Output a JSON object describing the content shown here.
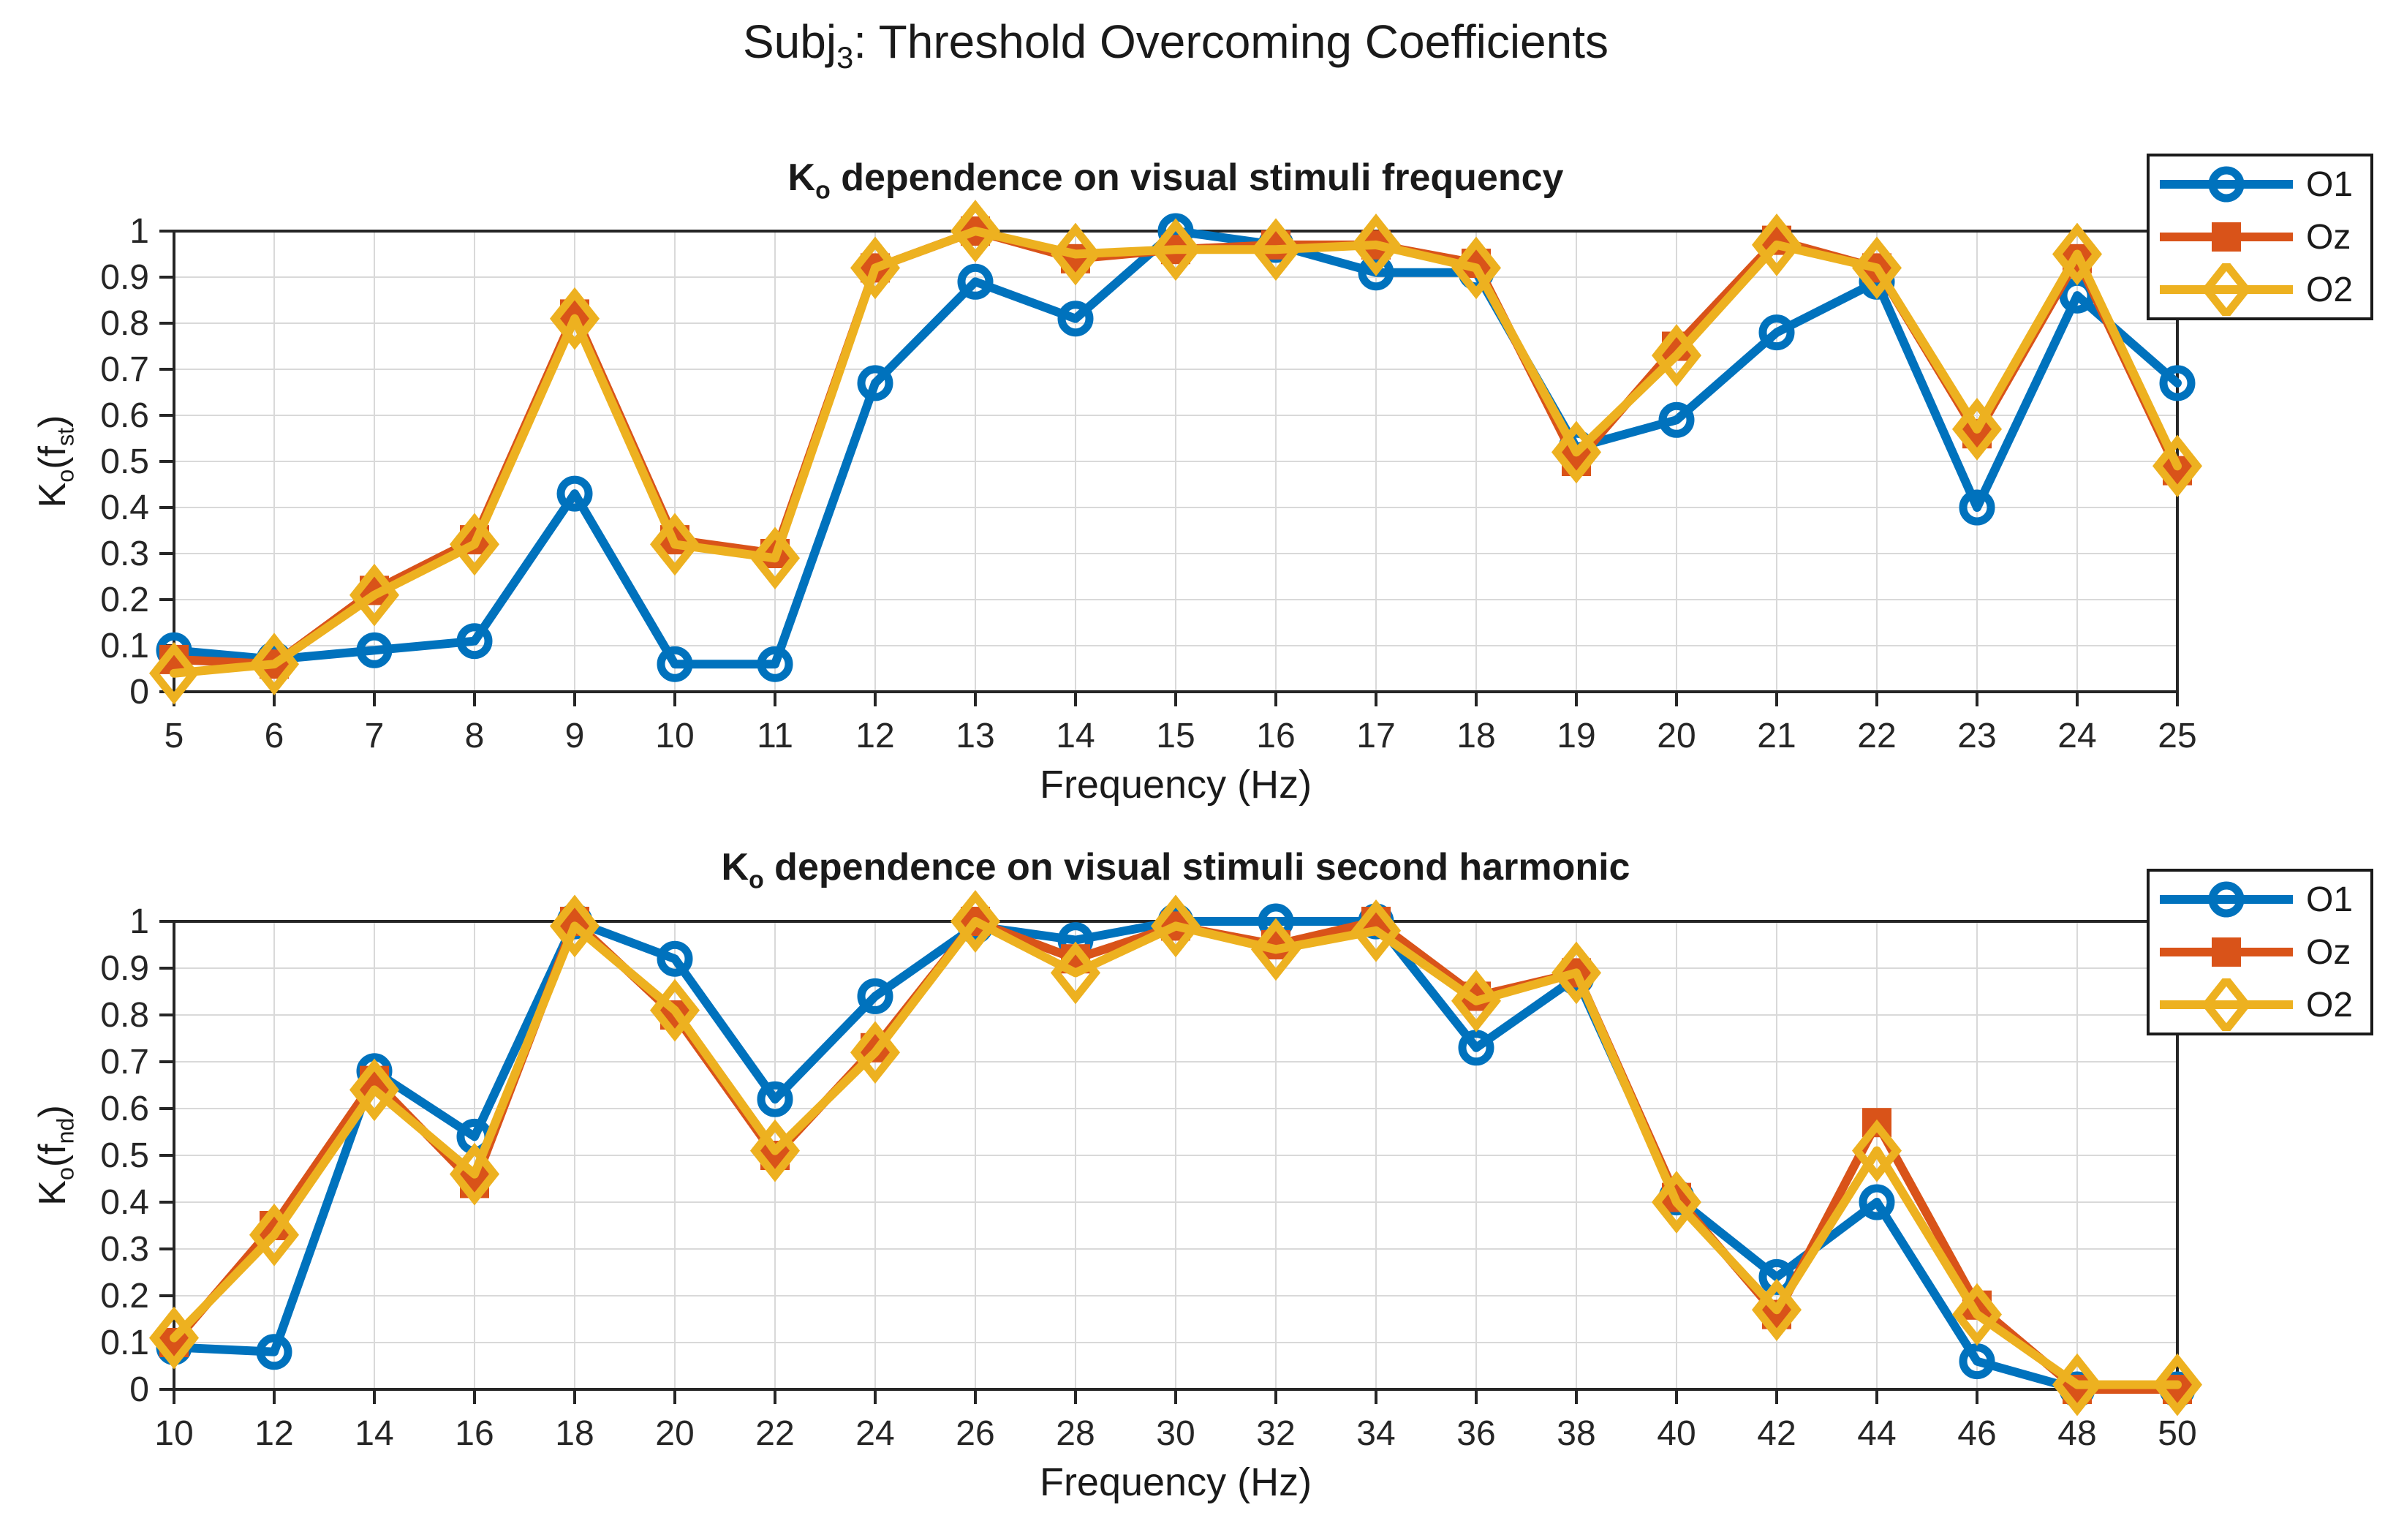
{
  "figure": {
    "title": {
      "prefix": "Subj",
      "sub": "3",
      "suffix": ": Threshold Overcoming Coefficients"
    }
  },
  "colors": {
    "o1": "#0072BD",
    "oz": "#D95319",
    "o2": "#EDB120",
    "axis": "#262626",
    "grid": "#D9D9D9",
    "background": "#FFFFFF"
  },
  "legend": {
    "entries": [
      {
        "label": "O1",
        "marker": "circle"
      },
      {
        "label": "Oz",
        "marker": "square"
      },
      {
        "label": "O2",
        "marker": "diamond"
      }
    ]
  },
  "chart_data": [
    {
      "type": "line",
      "title_k": "K",
      "title_sub": "o",
      "title_rest": " dependence on visual stimuli frequency",
      "ylabel_k": "K",
      "ylabel_sub": "o",
      "ylabel_open": "(f",
      "ylabel_fsub": "st",
      "ylabel_close": ")",
      "xlabel": "Frequency (Hz)",
      "xlim": [
        5,
        25
      ],
      "ylim": [
        0,
        1
      ],
      "grid": true,
      "legend_position": "top-right",
      "x": [
        5,
        6,
        7,
        8,
        9,
        10,
        11,
        12,
        13,
        14,
        15,
        16,
        17,
        18,
        19,
        20,
        21,
        22,
        23,
        24,
        25
      ],
      "xtick_labels": [
        "5",
        "6",
        "7",
        "8",
        "9",
        "10",
        "11",
        "12",
        "13",
        "14",
        "15",
        "16",
        "17",
        "18",
        "19",
        "20",
        "21",
        "22",
        "23",
        "24",
        "25"
      ],
      "yticks": [
        0,
        0.1,
        0.2,
        0.3,
        0.4,
        0.5,
        0.6,
        0.7,
        0.8,
        0.9,
        1
      ],
      "ytick_labels": [
        "0",
        "0.1",
        "0.2",
        "0.3",
        "0.4",
        "0.5",
        "0.6",
        "0.7",
        "0.8",
        "0.9",
        "1"
      ],
      "series": [
        {
          "name": "O1",
          "marker": "circle",
          "color": "#0072BD",
          "values": [
            0.09,
            0.07,
            0.09,
            0.11,
            0.43,
            0.06,
            0.06,
            0.67,
            0.89,
            0.81,
            1.0,
            0.97,
            0.91,
            0.91,
            0.53,
            0.59,
            0.78,
            0.89,
            0.4,
            0.86,
            0.67
          ]
        },
        {
          "name": "Oz",
          "marker": "square",
          "color": "#D95319",
          "values": [
            0.07,
            0.06,
            0.22,
            0.33,
            0.82,
            0.33,
            0.3,
            0.92,
            1.0,
            0.94,
            0.96,
            0.97,
            0.97,
            0.93,
            0.5,
            0.75,
            0.98,
            0.92,
            0.56,
            0.94,
            0.48
          ]
        },
        {
          "name": "O2",
          "marker": "diamond",
          "color": "#EDB120",
          "values": [
            0.04,
            0.06,
            0.21,
            0.32,
            0.81,
            0.32,
            0.29,
            0.92,
            1.0,
            0.95,
            0.96,
            0.96,
            0.97,
            0.92,
            0.52,
            0.73,
            0.97,
            0.92,
            0.57,
            0.95,
            0.49
          ]
        }
      ]
    },
    {
      "type": "line",
      "title_k": "K",
      "title_sub": "o",
      "title_rest": " dependence on visual stimuli second harmonic",
      "ylabel_k": "K",
      "ylabel_sub": "o",
      "ylabel_open": "(f",
      "ylabel_fsub": "nd",
      "ylabel_close": ")",
      "xlabel": "Frequency (Hz)",
      "xlim": [
        10,
        50
      ],
      "ylim": [
        0,
        1
      ],
      "grid": true,
      "legend_position": "top-right",
      "x": [
        10,
        12,
        14,
        16,
        18,
        20,
        22,
        24,
        26,
        28,
        30,
        32,
        34,
        36,
        38,
        40,
        42,
        44,
        46,
        48,
        50
      ],
      "xtick_labels": [
        "10",
        "12",
        "14",
        "16",
        "18",
        "20",
        "22",
        "24",
        "26",
        "28",
        "30",
        "32",
        "34",
        "36",
        "38",
        "40",
        "42",
        "44",
        "46",
        "48",
        "50"
      ],
      "yticks": [
        0,
        0.1,
        0.2,
        0.3,
        0.4,
        0.5,
        0.6,
        0.7,
        0.8,
        0.9,
        1
      ],
      "ytick_labels": [
        "0",
        "0.1",
        "0.2",
        "0.3",
        "0.4",
        "0.5",
        "0.6",
        "0.7",
        "0.8",
        "0.9",
        "1"
      ],
      "series": [
        {
          "name": "O1",
          "marker": "circle",
          "color": "#0072BD",
          "values": [
            0.09,
            0.08,
            0.68,
            0.54,
            1.0,
            0.92,
            0.62,
            0.84,
            0.99,
            0.96,
            1.0,
            1.0,
            1.0,
            0.73,
            0.88,
            0.41,
            0.24,
            0.4,
            0.06,
            0.0,
            0.0
          ]
        },
        {
          "name": "Oz",
          "marker": "square",
          "color": "#D95319",
          "values": [
            0.1,
            0.35,
            0.66,
            0.44,
            1.0,
            0.8,
            0.5,
            0.73,
            1.0,
            0.92,
            0.99,
            0.95,
            1.0,
            0.84,
            0.89,
            0.41,
            0.16,
            0.57,
            0.18,
            0.0,
            0.0
          ]
        },
        {
          "name": "O2",
          "marker": "diamond",
          "color": "#EDB120",
          "values": [
            0.11,
            0.33,
            0.64,
            0.46,
            0.99,
            0.81,
            0.51,
            0.72,
            1.0,
            0.89,
            0.99,
            0.94,
            0.98,
            0.83,
            0.89,
            0.4,
            0.17,
            0.51,
            0.16,
            0.01,
            0.01
          ]
        }
      ]
    }
  ]
}
